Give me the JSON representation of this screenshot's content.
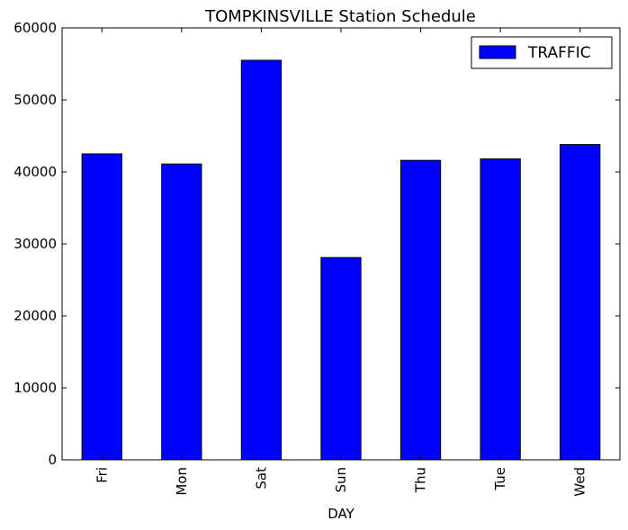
{
  "chart_data": {
    "type": "bar",
    "title": "TOMPKINSVILLE Station Schedule",
    "xlabel": "DAY",
    "ylabel": "",
    "categories": [
      "Fri",
      "Mon",
      "Sat",
      "Sun",
      "Thu",
      "Tue",
      "Wed"
    ],
    "series": [
      {
        "name": "TRAFFIC",
        "values": [
          42500,
          41100,
          55500,
          28100,
          41600,
          41800,
          43800
        ],
        "color": "#0000ff"
      }
    ],
    "ylim": [
      0,
      60000
    ],
    "yticks": [
      0,
      10000,
      20000,
      30000,
      40000,
      50000,
      60000
    ],
    "ytick_labels": [
      "0",
      "10000",
      "20000",
      "30000",
      "40000",
      "50000",
      "60000"
    ],
    "grid": false,
    "legend_position": "top-right"
  }
}
